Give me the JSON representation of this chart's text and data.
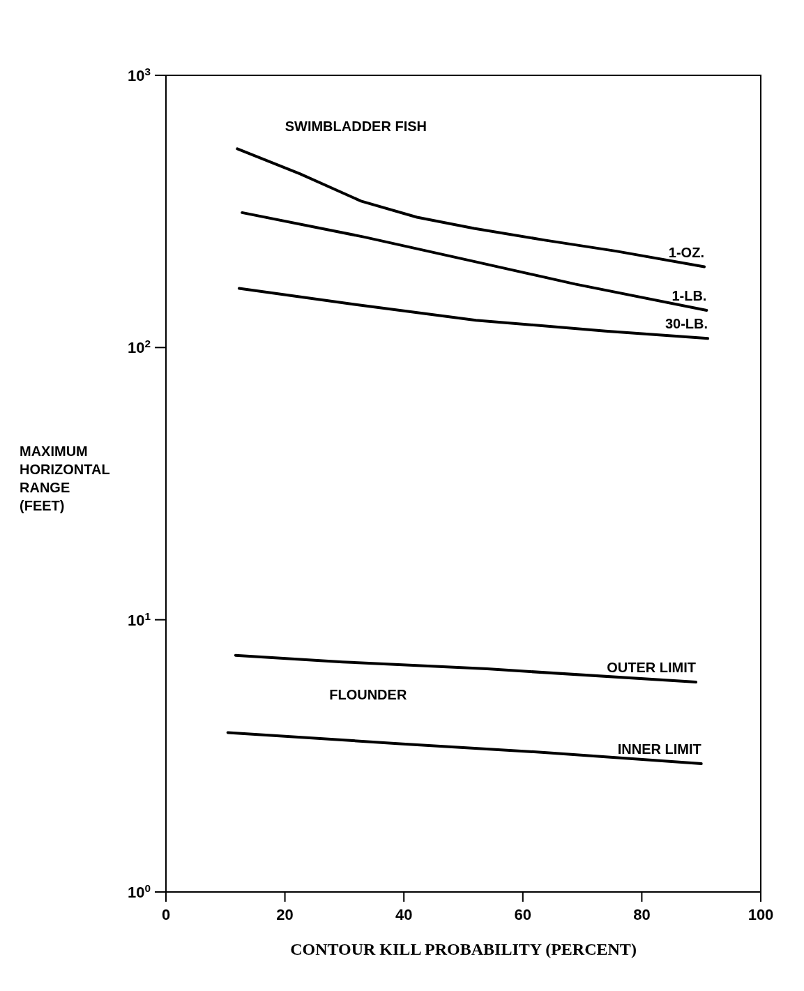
{
  "chart_data": {
    "type": "line",
    "xlabel": "CONTOUR KILL PROBABILITY (PERCENT)",
    "ylabel": "MAXIMUM HORIZONTAL RANGE (FEET)",
    "xlim": [
      0,
      100
    ],
    "xticks": [
      0,
      20,
      40,
      60,
      80,
      100
    ],
    "ylim": [
      1,
      1000
    ],
    "yticks": [
      {
        "value": 1,
        "label": "10$^{0}$"
      },
      {
        "value": 10,
        "label": "10$^{1}$"
      },
      {
        "value": 100,
        "label": "10$^{2}$"
      },
      {
        "value": 1000,
        "label": "10$^{3}$"
      }
    ],
    "log": "y",
    "grid": false,
    "legend": false,
    "marker": "none",
    "line_style": "solid",
    "series": [
      {
        "name": "1-OZ.",
        "color": "#000000",
        "x": [
          12,
          22.5,
          32.8,
          42.2,
          51.8,
          63.7,
          75.7,
          90.5
        ],
        "values": [
          537,
          435,
          345,
          301,
          274,
          248,
          226,
          198
        ]
      },
      {
        "name": "1-LB.",
        "color": "#000000",
        "x": [
          12.8,
          33.2,
          51,
          68.8,
          90.9
        ],
        "values": [
          313,
          255,
          209,
          171,
          137
        ]
      },
      {
        "name": "30-LB.",
        "color": "#000000",
        "x": [
          12.3,
          31.7,
          52.1,
          73.9,
          91.1
        ],
        "values": [
          165,
          144,
          126,
          115,
          108
        ]
      },
      {
        "name": "OUTER LIMIT",
        "color": "#000000",
        "x": [
          11.7,
          29.7,
          54,
          89.1
        ],
        "values": [
          7.4,
          7,
          6.6,
          5.9
        ]
      },
      {
        "name": "INNER LIMIT",
        "color": "#000000",
        "x": [
          10.4,
          39.8,
          64,
          90
        ],
        "values": [
          3.85,
          3.5,
          3.25,
          2.96
        ]
      }
    ],
    "annotations": [
      "SWIMBLADDER FISH",
      "FLOUNDER"
    ]
  }
}
